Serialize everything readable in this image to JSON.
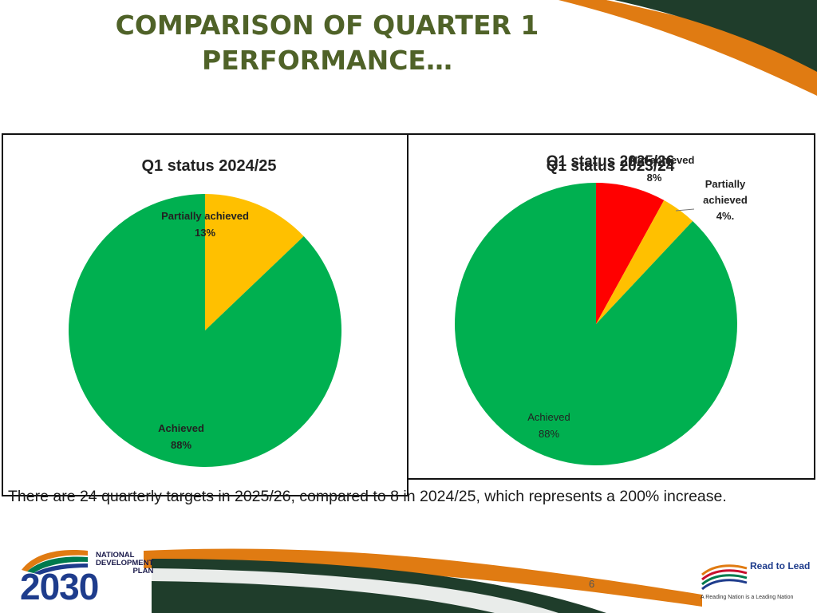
{
  "slide": {
    "title_line1": "COMPARISON OF QUARTER 1",
    "title_line2": "PERFORMANCE…",
    "caption": "There are 24 quarterly targets in 2025/26, compared to 8 in 2024/25, which represents a 200% increase.",
    "page_number": "6"
  },
  "logos": {
    "ndp_text_line1": "NATIONAL",
    "ndp_text_line2": "DEVELOPMENT",
    "ndp_text_line3": "PLAN",
    "ndp_year": "2030",
    "rtl_text": "Read to Lead",
    "rtl_tagline": "A Reading Nation is a Leading Nation"
  },
  "colors": {
    "title": "#4f6228",
    "achieved": "#00b050",
    "partially_achieved": "#ffc000",
    "not_achieved": "#ff0000",
    "deco_dark": "#1f3d2b",
    "deco_orange": "#e07b12"
  },
  "chart_data": [
    {
      "type": "pie",
      "title": "Q1 status 2024/25",
      "slices": [
        {
          "label": "Partially achieved",
          "value": 13,
          "display": "13%",
          "color": "#ffc000"
        },
        {
          "label": "Achieved",
          "value": 88,
          "display": "88%",
          "color": "#00b050"
        }
      ]
    },
    {
      "type": "pie",
      "title": "Q1 status 2025/26",
      "overlapping_title": "Q1 status 2023/24",
      "slices": [
        {
          "label": "Not achieved",
          "value": 8,
          "display": "8%",
          "color": "#ff0000"
        },
        {
          "label": "Partially achieved",
          "value": 4,
          "display": "4%.",
          "color": "#ffc000"
        },
        {
          "label": "Achieved",
          "value": 88,
          "display": "88%",
          "color": "#00b050"
        }
      ]
    }
  ]
}
